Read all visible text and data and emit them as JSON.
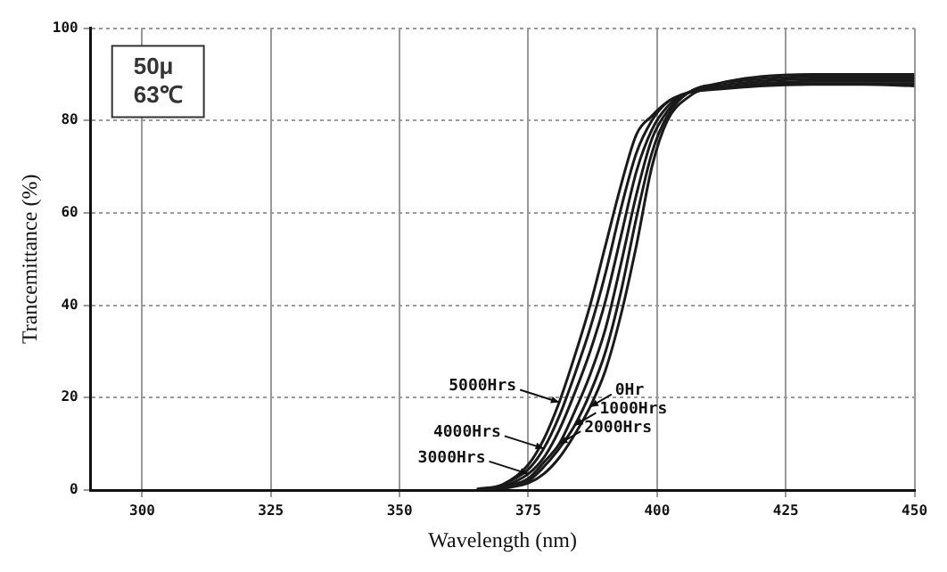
{
  "chart_data": {
    "type": "line",
    "title": "50μ",
    "subtitle": "63℃",
    "xlabel": "Wavelength (nm)",
    "ylabel": "Trancemittance (%)",
    "x": [
      365,
      370,
      375,
      378,
      381,
      384,
      387,
      390,
      393,
      396,
      399,
      402,
      406,
      412,
      420,
      430,
      440,
      450
    ],
    "series": [
      {
        "color": "#1a1a1a",
        "values": [
          null,
          0.3,
          1.5,
          3.5,
          7,
          12,
          18,
          26,
          38,
          53,
          70,
          80,
          85,
          88,
          89.5,
          90,
          90,
          90
        ]
      },
      {
        "color": "#1a1a1a",
        "values": [
          0,
          0.5,
          2,
          5,
          9,
          14,
          21,
          30,
          43,
          59,
          73,
          81,
          86,
          88,
          89,
          89.5,
          89.5,
          89.5
        ]
      },
      {
        "color": "#1a1a1a",
        "values": [
          null,
          0.6,
          2.5,
          6,
          10,
          17,
          25,
          35,
          49,
          64,
          76,
          82,
          86,
          87.5,
          88.5,
          89,
          89,
          89
        ]
      },
      {
        "color": "#1a1a1a",
        "values": [
          0.1,
          0.8,
          3.5,
          7,
          13,
          21,
          30,
          41,
          55,
          69,
          78,
          83,
          86,
          87,
          88,
          88.5,
          88.5,
          88.5
        ]
      },
      {
        "color": "#1a1a1a",
        "values": [
          null,
          1,
          4.5,
          9,
          16,
          25,
          35,
          47,
          61,
          73,
          80,
          84,
          86,
          87,
          87.8,
          88,
          88,
          88
        ]
      },
      {
        "color": "#1a1a1a",
        "values": [
          0.2,
          1.2,
          5.5,
          11,
          19,
          29,
          40,
          53,
          66,
          77,
          81,
          84,
          86,
          86.8,
          87.5,
          87.8,
          87.8,
          87.5
        ]
      }
    ],
    "annotations": [
      {
        "text": "0Hr",
        "x": 387,
        "y": 18
      },
      {
        "text": "1000Hrs",
        "x": 384,
        "y": 14
      },
      {
        "text": "2000Hrs",
        "x": 381,
        "y": 10
      },
      {
        "text": "3000Hrs",
        "x": 375,
        "y": 3.5
      },
      {
        "text": "4000Hrs",
        "x": 378,
        "y": 9
      },
      {
        "text": "5000Hrs",
        "x": 381,
        "y": 19
      }
    ],
    "xlim": [
      290,
      450
    ],
    "xticks": [
      300,
      325,
      350,
      375,
      400,
      425,
      450
    ],
    "ylim": [
      0,
      100
    ],
    "yticks": [
      0,
      20,
      40,
      60,
      80,
      100
    ],
    "grid": true,
    "legend": false,
    "marker": "none",
    "line_style": "solid"
  }
}
